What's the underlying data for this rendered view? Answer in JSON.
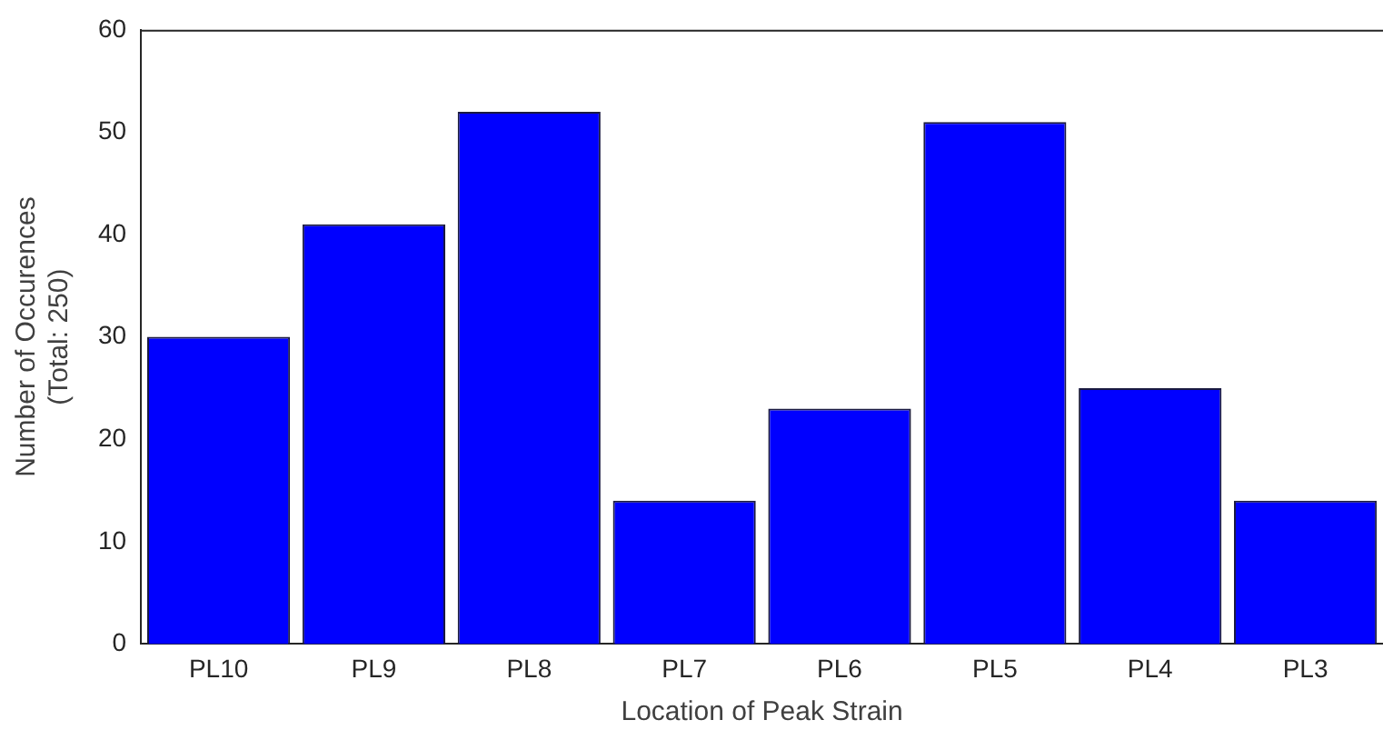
{
  "chart_data": {
    "type": "bar",
    "xlabel": "Location of Peak Strain",
    "ylabel": "Number of Occurences\n(Total: 250)",
    "categories": [
      "PL10",
      "PL9",
      "PL8",
      "PL7",
      "PL6",
      "PL5",
      "PL4",
      "PL3"
    ],
    "values": [
      30,
      41,
      52,
      14,
      23,
      51,
      25,
      14
    ],
    "color": "#0000ff",
    "ylim": [
      0,
      60
    ],
    "yticks": [
      0,
      10,
      20,
      30,
      40,
      50,
      60
    ],
    "grid": false,
    "legend": false
  }
}
